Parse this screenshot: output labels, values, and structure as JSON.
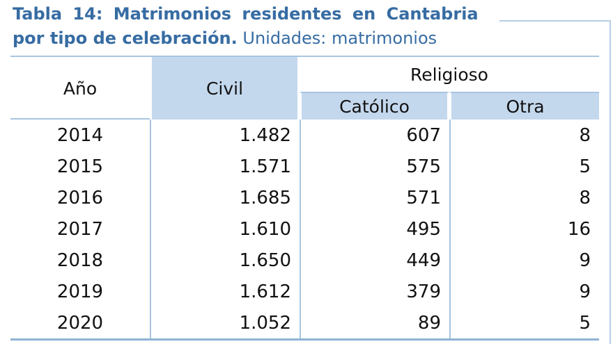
{
  "title": {
    "line1_bold": "Tabla 14: Matrimonios residentes en Cantabria",
    "line2_bold": "por tipo de celebración.",
    "line2_regular": " Unidades: matrimonios"
  },
  "table": {
    "col_ano": "Año",
    "col_civil": "Civil",
    "col_religioso": "Religioso",
    "col_catolico": "Católico",
    "col_otra": "Otra",
    "rows": [
      {
        "ano": "2014",
        "civil": "1.482",
        "catolico": "607",
        "otra": "8"
      },
      {
        "ano": "2015",
        "civil": "1.571",
        "catolico": "575",
        "otra": "5"
      },
      {
        "ano": "2016",
        "civil": "1.685",
        "catolico": "571",
        "otra": "8"
      },
      {
        "ano": "2017",
        "civil": "1.610",
        "catolico": "495",
        "otra": "16"
      },
      {
        "ano": "2018",
        "civil": "1.650",
        "catolico": "449",
        "otra": "9"
      },
      {
        "ano": "2019",
        "civil": "1.612",
        "catolico": "379",
        "otra": "9"
      },
      {
        "ano": "2020",
        "civil": "1.052",
        "catolico": "89",
        "otra": "5"
      }
    ]
  },
  "colors": {
    "title_blue": "#376CA3",
    "header_fill": "#C4D8ED",
    "border_light": "#A8C4E0",
    "border_strong": "#8FB2D5",
    "frame_blue": "#B5CCE5"
  },
  "chart_data": {
    "type": "table",
    "title": "Tabla 14: Matrimonios residentes en Cantabria por tipo de celebración. Unidades: matrimonios",
    "columns": [
      "Año",
      "Civil",
      "Religioso - Católico",
      "Religioso - Otra"
    ],
    "rows": [
      [
        2014,
        1482,
        607,
        8
      ],
      [
        2015,
        1571,
        575,
        5
      ],
      [
        2016,
        1685,
        571,
        8
      ],
      [
        2017,
        1610,
        495,
        16
      ],
      [
        2018,
        1650,
        449,
        9
      ],
      [
        2019,
        1612,
        379,
        9
      ],
      [
        2020,
        1052,
        89,
        5
      ]
    ]
  }
}
